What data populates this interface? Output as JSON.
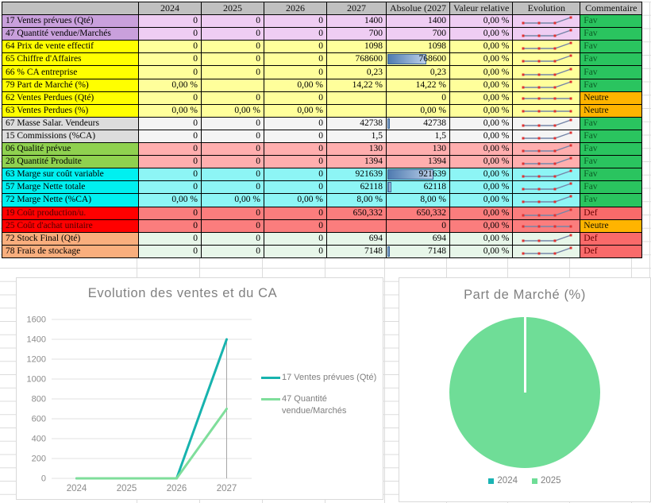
{
  "table": {
    "columns": [
      "2024",
      "2025",
      "2026",
      "2027",
      "Absolue (2027",
      "Valeur relative",
      "Evolution",
      "Commentaire"
    ],
    "rows": [
      {
        "label": "17 Ventes prévues (Qté)",
        "theme": "purple",
        "values": [
          "0",
          "0",
          "0",
          "1400"
        ],
        "absolue": "1400",
        "bar": 0,
        "relative": "0,00 %",
        "spark": "rise",
        "comment": "Fav"
      },
      {
        "label": "47 Quantité vendue/Marchés",
        "theme": "purple",
        "values": [
          "0",
          "0",
          "0",
          "700"
        ],
        "absolue": "700",
        "bar": 0,
        "relative": "0,00 %",
        "spark": "rise",
        "comment": "Fav"
      },
      {
        "label": "64 Prix de vente effectif",
        "theme": "yellow",
        "values": [
          "0",
          "0",
          "0",
          "1098"
        ],
        "absolue": "1098",
        "bar": 0,
        "relative": "0,00 %",
        "spark": "rise",
        "comment": "Fav"
      },
      {
        "label": "65 Chiffre d'Affaires",
        "theme": "yellow",
        "values": [
          "0",
          "0",
          "0",
          "768600"
        ],
        "absolue": "768600",
        "bar": 62,
        "relative": "0,00 %",
        "spark": "rise",
        "comment": "Fav"
      },
      {
        "label": "66 % CA entreprise",
        "theme": "yellow",
        "values": [
          "0",
          "0",
          "0",
          "0,23"
        ],
        "absolue": "0,23",
        "bar": 0,
        "relative": "0,00 %",
        "spark": "rise",
        "comment": "Fav"
      },
      {
        "label": "79 Part de Marché (%)",
        "theme": "yellow",
        "values": [
          "0,00 %",
          "",
          "0,00 %",
          "14,22 %"
        ],
        "absolue": "14,22 %",
        "bar": 0,
        "relative": "0,00 %",
        "spark": "rise",
        "comment": "Fav"
      },
      {
        "label": "62 Ventes Perdues (Qté)",
        "theme": "yellow",
        "values": [
          "0",
          "0",
          "0",
          ""
        ],
        "absolue": "0",
        "bar": 0,
        "relative": "0,00 %",
        "spark": "flat",
        "comment": "Neutre"
      },
      {
        "label": "63 Ventes Perdues (%)",
        "theme": "yellow",
        "values": [
          "0,00 %",
          "0,00 %",
          "0,00 %",
          ""
        ],
        "absolue": "0,00 %",
        "bar": 0,
        "relative": "0,00 %",
        "spark": "flat",
        "comment": "Neutre"
      },
      {
        "label": "67 Masse Salar. Vendeurs",
        "theme": "gray",
        "values": [
          "0",
          "0",
          "0",
          "42738"
        ],
        "absolue": "42738",
        "bar": 4,
        "relative": "0,00 %",
        "spark": "rise",
        "comment": "Fav"
      },
      {
        "label": "15 Commissions (%CA)",
        "theme": "gray",
        "values": [
          "0",
          "0",
          "0",
          "1,5"
        ],
        "absolue": "1,5",
        "bar": 0,
        "relative": "0,00 %",
        "spark": "rise",
        "comment": "Fav"
      },
      {
        "label": "06 Qualité prévue",
        "theme": "greenpink",
        "values": [
          "0",
          "0",
          "0",
          "130"
        ],
        "absolue": "130",
        "bar": 0,
        "relative": "0,00 %",
        "spark": "rise",
        "comment": "Fav"
      },
      {
        "label": "28 Quantité Produite",
        "theme": "greenpink",
        "values": [
          "0",
          "0",
          "0",
          "1394"
        ],
        "absolue": "1394",
        "bar": 0,
        "relative": "0,00 %",
        "spark": "rise",
        "comment": "Fav"
      },
      {
        "label": "63 Marge sur coût variable",
        "theme": "cyan",
        "values": [
          "0",
          "0",
          "0",
          "921639"
        ],
        "absolue": "921639",
        "bar": 74,
        "relative": "0,00 %",
        "spark": "rise",
        "comment": "Fav"
      },
      {
        "label": "57 Marge Nette totale",
        "theme": "cyan",
        "values": [
          "0",
          "0",
          "0",
          "62118"
        ],
        "absolue": "62118",
        "bar": 6,
        "relative": "0,00 %",
        "spark": "rise",
        "comment": "Fav"
      },
      {
        "label": "72 Marge Nette (%CA)",
        "theme": "cyan",
        "values": [
          "0,00 %",
          "0,00 %",
          "0,00 %",
          "8,00 %"
        ],
        "absolue": "8,00 %",
        "bar": 0,
        "relative": "0,00 %",
        "spark": "rise",
        "comment": "Fav"
      },
      {
        "label": "19 Coût production/u.",
        "theme": "red",
        "values": [
          "0",
          "0",
          "0",
          "650,332"
        ],
        "absolue": "650,332",
        "bar": 0,
        "relative": "0,00 %",
        "spark": "rise",
        "comment": "Def"
      },
      {
        "label": "25 Coût d'achat unitaire",
        "theme": "red",
        "values": [
          "0",
          "0",
          "0",
          ""
        ],
        "absolue": "0",
        "bar": 0,
        "relative": "0,00 %",
        "spark": "flat",
        "comment": "Neutre"
      },
      {
        "label": "72 Stock Final (Qté)",
        "theme": "orange",
        "values": [
          "0",
          "0",
          "0",
          "694"
        ],
        "absolue": "694",
        "bar": 0,
        "relative": "0,00 %",
        "spark": "rise",
        "comment": "Def"
      },
      {
        "label": "78 Frais de stockage",
        "theme": "orange",
        "values": [
          "0",
          "0",
          "0",
          "7148"
        ],
        "absolue": "7148",
        "bar": 3,
        "relative": "0,00 %",
        "spark": "rise",
        "comment": "Def"
      }
    ]
  },
  "chart_data": [
    {
      "type": "line",
      "title": "Evolution des ventes et du CA",
      "x": [
        "2024",
        "2025",
        "2026",
        "2027"
      ],
      "series": [
        {
          "name": "17 Ventes prévues (Qté)",
          "color": "#17B3AE",
          "values": [
            0,
            0,
            0,
            1400
          ]
        },
        {
          "name": "47 Quantité vendue/Marchés",
          "color": "#7FDE9B",
          "values": [
            0,
            0,
            0,
            700
          ]
        }
      ],
      "ylim": [
        0,
        1600
      ],
      "ytick_step": 200,
      "grid": true,
      "legend_position": "right",
      "drop_line_at": "2027"
    },
    {
      "type": "pie",
      "title": "Part de Marché (%)",
      "labels": [
        "2024",
        "2025"
      ],
      "values": [
        0,
        100
      ],
      "colors": [
        "#1AB4B4",
        "#6FDD97"
      ],
      "legend_position": "bottom"
    }
  ],
  "sparkline": {
    "line_color": "#7585A8",
    "marker_color": "#E03131"
  },
  "colors": {
    "databar": "#4f7bb0",
    "fav": "#2AC45F",
    "neutre": "#FFB400",
    "def": "#F96A6A"
  }
}
